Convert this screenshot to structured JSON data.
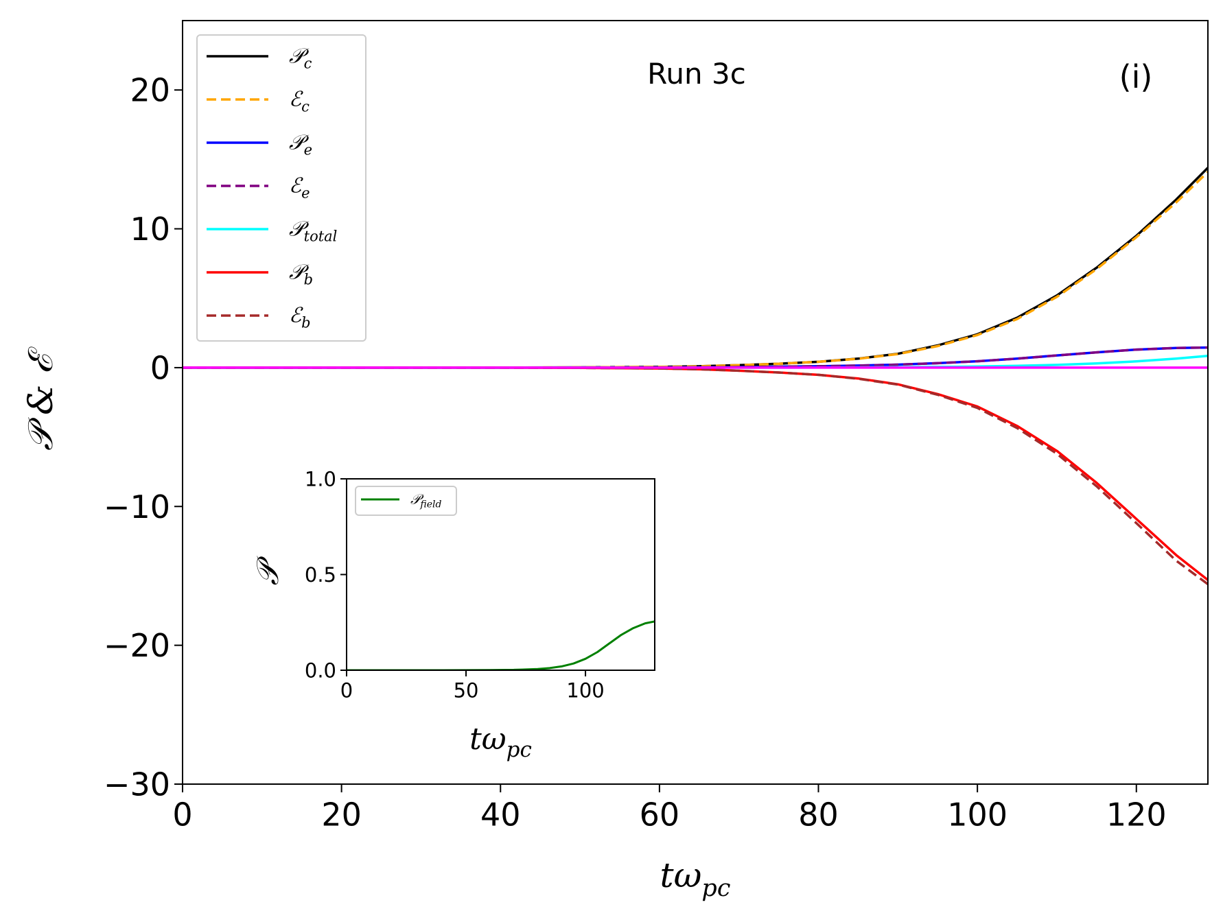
{
  "chart_data": [
    {
      "type": "line",
      "annotation": "Run 3c",
      "panel_label": "(i)",
      "xlabel": {
        "main": "tω",
        "sub": "pc"
      },
      "ylabel": "𝒫 & ℰ",
      "xlim": [
        0,
        129
      ],
      "ylim": [
        -30,
        25
      ],
      "xticks": [
        0,
        20,
        40,
        60,
        80,
        100,
        120
      ],
      "yticks": [
        -30,
        -20,
        -10,
        0,
        10,
        20
      ],
      "grid": false,
      "legend_position": "upper-left",
      "x": [
        0,
        10,
        20,
        30,
        40,
        50,
        60,
        65,
        70,
        75,
        80,
        85,
        90,
        95,
        100,
        105,
        110,
        115,
        120,
        125,
        129
      ],
      "series": [
        {
          "name": "𝒫",
          "sub": "c",
          "color": "#000000",
          "dash": "solid",
          "values": [
            0,
            0,
            0,
            0,
            0,
            0.02,
            0.05,
            0.1,
            0.18,
            0.28,
            0.42,
            0.65,
            1.0,
            1.6,
            2.4,
            3.6,
            5.2,
            7.2,
            9.5,
            12.1,
            14.4
          ]
        },
        {
          "name": "ℰ",
          "sub": "c",
          "color": "#ffa500",
          "dash": "dashed",
          "values": [
            0,
            0,
            0,
            0,
            0,
            0.02,
            0.05,
            0.1,
            0.18,
            0.28,
            0.42,
            0.64,
            0.98,
            1.55,
            2.35,
            3.5,
            5.1,
            7.1,
            9.4,
            11.9,
            14.1
          ]
        },
        {
          "name": "𝒫",
          "sub": "e",
          "color": "#0000ff",
          "dash": "solid",
          "values": [
            0,
            0,
            0,
            0,
            0,
            0,
            0.01,
            0.02,
            0.04,
            0.07,
            0.1,
            0.15,
            0.22,
            0.32,
            0.46,
            0.65,
            0.88,
            1.1,
            1.3,
            1.42,
            1.45
          ]
        },
        {
          "name": "ℰ",
          "sub": "e",
          "color": "#800080",
          "dash": "dashed",
          "values": [
            0,
            0,
            0,
            0,
            0,
            0,
            0.01,
            0.02,
            0.04,
            0.07,
            0.1,
            0.15,
            0.22,
            0.32,
            0.46,
            0.65,
            0.88,
            1.1,
            1.3,
            1.42,
            1.45
          ]
        },
        {
          "name": "𝒫",
          "sub": "total",
          "color": "#00ffff",
          "dash": "solid",
          "values": [
            0,
            0,
            0,
            0,
            0,
            0,
            0,
            0,
            0,
            0,
            0.01,
            0.02,
            0.03,
            0.05,
            0.08,
            0.13,
            0.2,
            0.3,
            0.45,
            0.65,
            0.85
          ]
        },
        {
          "name": "𝒫",
          "sub": "b",
          "color": "#ff0000",
          "dash": "solid",
          "values": [
            0,
            0,
            0,
            0,
            0,
            -0.02,
            -0.06,
            -0.12,
            -0.22,
            -0.35,
            -0.52,
            -0.78,
            -1.2,
            -1.9,
            -2.8,
            -4.2,
            -6.0,
            -8.3,
            -10.9,
            -13.5,
            -15.3
          ]
        },
        {
          "name": "ℰ",
          "sub": "b",
          "color": "#a52a2a",
          "dash": "dashed",
          "values": [
            0,
            0,
            0,
            0,
            0,
            -0.02,
            -0.06,
            -0.12,
            -0.22,
            -0.35,
            -0.52,
            -0.8,
            -1.22,
            -1.95,
            -2.9,
            -4.35,
            -6.2,
            -8.55,
            -11.2,
            -13.9,
            -15.6
          ]
        },
        {
          "name": "",
          "sub": "",
          "color": "#ff00ff",
          "dash": "solid",
          "in_legend": false,
          "values": [
            0,
            0,
            0,
            0,
            0,
            0,
            0,
            0,
            0,
            0,
            0,
            0,
            0,
            0,
            0,
            0,
            0,
            0,
            0,
            0,
            0
          ]
        }
      ]
    },
    {
      "type": "line",
      "role": "inset",
      "xlabel": {
        "main": "tω",
        "sub": "pc"
      },
      "ylabel": "𝒫",
      "xlim": [
        0,
        129
      ],
      "ylim": [
        0,
        1
      ],
      "xticks": [
        0,
        50,
        100
      ],
      "yticks": [
        0.0,
        0.5,
        1.0
      ],
      "ytick_labels": [
        "0.0",
        "0.5",
        "1.0"
      ],
      "legend_position": "upper-left",
      "x": [
        0,
        20,
        40,
        60,
        70,
        80,
        85,
        90,
        95,
        100,
        105,
        110,
        115,
        120,
        125,
        129
      ],
      "series": [
        {
          "name": "𝒫",
          "sub": "field",
          "color": "#008000",
          "dash": "solid",
          "values": [
            0,
            0,
            0,
            0.001,
            0.002,
            0.006,
            0.011,
            0.02,
            0.035,
            0.06,
            0.095,
            0.14,
            0.185,
            0.22,
            0.245,
            0.255
          ]
        }
      ]
    }
  ]
}
